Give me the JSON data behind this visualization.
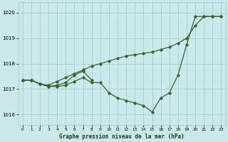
{
  "bg_color": "#cce8e8",
  "grid_color": "#99cccc",
  "line_color": "#336633",
  "title": "Graphe pression niveau de la mer (hPa)",
  "xlim": [
    -0.5,
    23.5
  ],
  "ylim": [
    1015.6,
    1020.4
  ],
  "yticks": [
    1016,
    1017,
    1018,
    1019,
    1020
  ],
  "xticks": [
    0,
    1,
    2,
    3,
    4,
    5,
    6,
    7,
    8,
    9,
    10,
    11,
    12,
    13,
    14,
    15,
    16,
    17,
    18,
    19,
    20,
    21,
    22,
    23
  ],
  "line_rising": {
    "x": [
      0,
      1,
      2,
      3,
      4,
      5,
      6,
      7,
      8,
      9,
      10,
      11,
      12,
      13,
      14,
      15,
      16,
      17,
      18,
      19,
      20,
      21,
      22,
      23
    ],
    "y": [
      1017.35,
      1017.35,
      1017.2,
      1017.15,
      1017.3,
      1017.45,
      1017.6,
      1017.75,
      1017.9,
      1018.0,
      1018.1,
      1018.2,
      1018.3,
      1018.35,
      1018.4,
      1018.45,
      1018.55,
      1018.65,
      1018.8,
      1019.0,
      1019.5,
      1019.85,
      1019.85,
      1019.85
    ]
  },
  "line_dip": {
    "x": [
      0,
      1,
      2,
      3,
      4,
      5,
      6,
      7,
      8,
      9,
      10,
      11,
      12,
      13,
      14,
      15,
      16,
      17,
      18,
      19,
      20,
      21,
      22,
      23
    ],
    "y": [
      1017.35,
      1017.35,
      1017.2,
      1017.1,
      1017.1,
      1017.15,
      1017.3,
      1017.45,
      1017.25,
      1017.25,
      1016.85,
      1016.65,
      1016.55,
      1016.45,
      1016.35,
      1016.1,
      1016.65,
      1016.85,
      1017.55,
      1018.75,
      1019.85,
      1019.85,
      1019.85,
      1019.85
    ]
  },
  "line_short": {
    "x": [
      0,
      1,
      2,
      3,
      4,
      5,
      6,
      7,
      8
    ],
    "y": [
      1017.35,
      1017.35,
      1017.2,
      1017.1,
      1017.15,
      1017.25,
      1017.55,
      1017.7,
      1017.35
    ]
  }
}
